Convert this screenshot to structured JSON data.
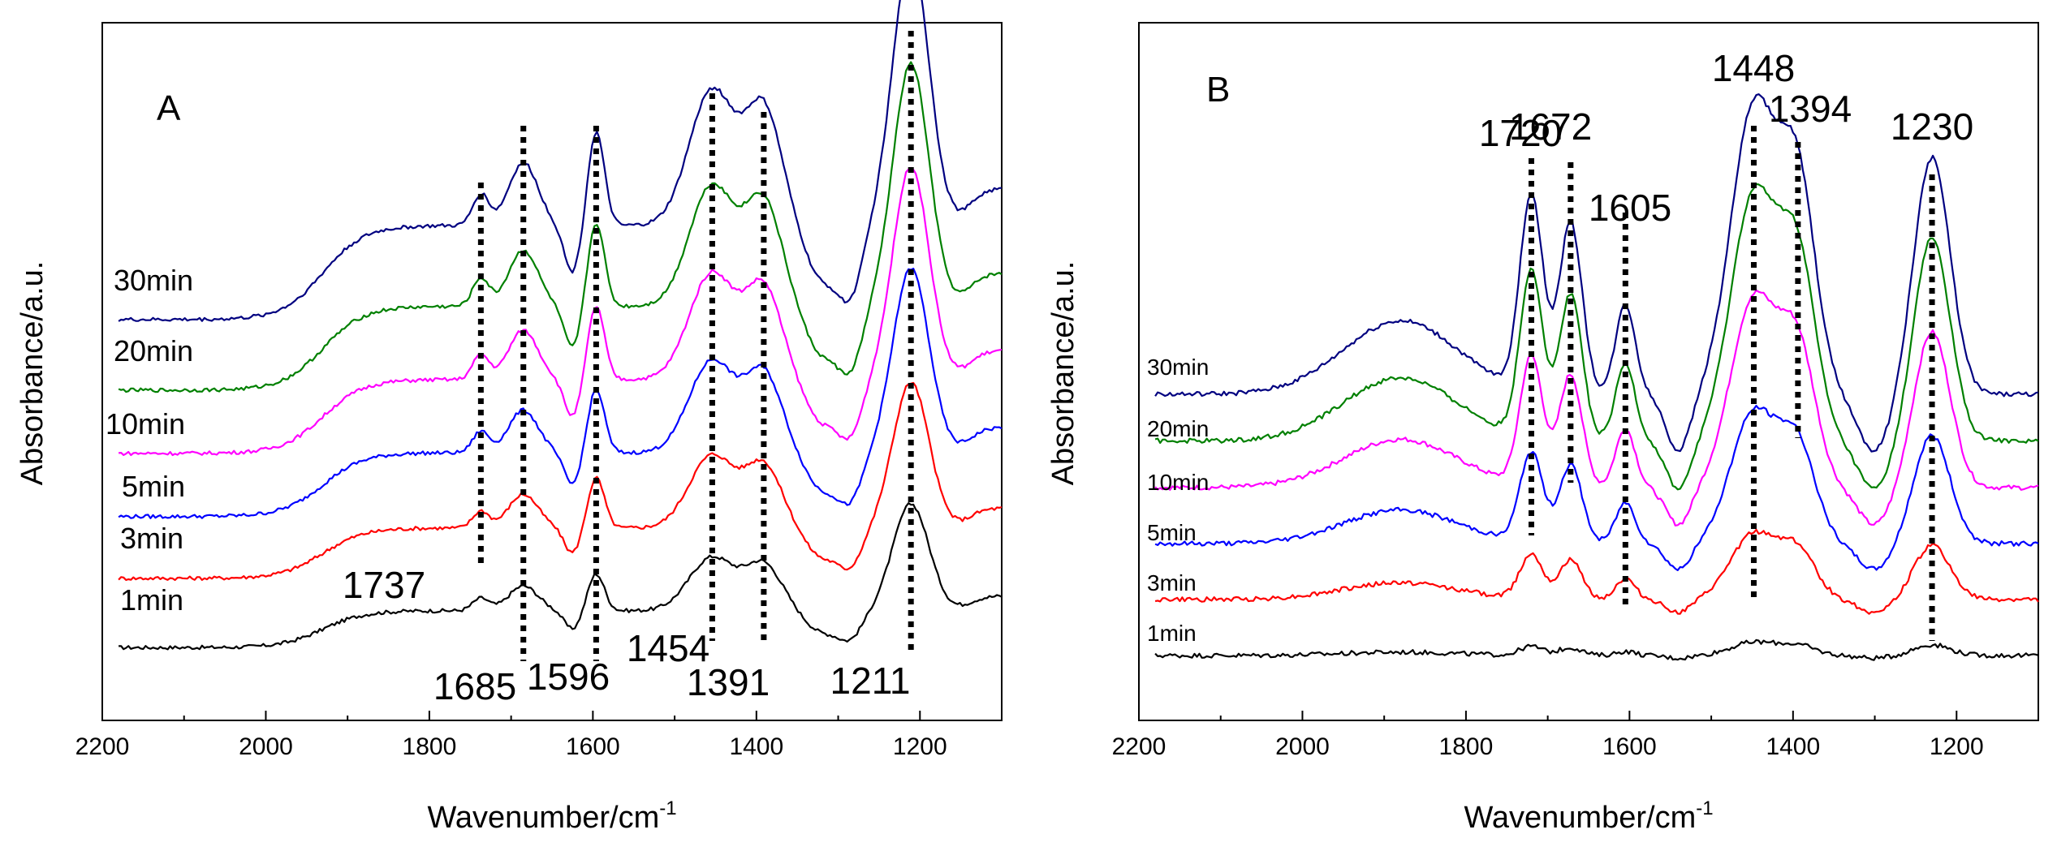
{
  "chart_data": [
    {
      "type": "line",
      "panel_label": "A",
      "xlabel": "Wavenumber/cm",
      "xlabel_sup": "-1",
      "ylabel": "Absorbance/a.u.",
      "xlim": [
        2200,
        1100
      ],
      "x_ticks": [
        2200,
        2000,
        1800,
        1600,
        1400,
        1200
      ],
      "y_ticks_labeled": false,
      "series": [
        {
          "name": "1min",
          "color": "#000000",
          "baseline": 0.0,
          "scale": 0.55
        },
        {
          "name": "3min",
          "color": "#ff0000",
          "baseline": 1.0,
          "scale": 0.75
        },
        {
          "name": "5min",
          "color": "#0000ff",
          "baseline": 1.9,
          "scale": 0.95
        },
        {
          "name": "10min",
          "color": "#ff00ff",
          "baseline": 2.8,
          "scale": 1.1
        },
        {
          "name": "20min",
          "color": "#008000",
          "baseline": 3.7,
          "scale": 1.25
        },
        {
          "name": "30min",
          "color": "#000080",
          "baseline": 4.7,
          "scale": 1.4
        }
      ],
      "peaks": [
        {
          "wavenumber": 1737,
          "label": "1737",
          "height": 1.0
        },
        {
          "wavenumber": 1685,
          "label": "1685",
          "height": 1.5
        },
        {
          "wavenumber": 1596,
          "label": "1596",
          "height": 1.7
        },
        {
          "wavenumber": 1454,
          "label": "1454",
          "height": 2.2
        },
        {
          "wavenumber": 1391,
          "label": "1391",
          "height": 2.0
        },
        {
          "wavenumber": 1211,
          "label": "1211",
          "height": 4.2
        }
      ]
    },
    {
      "type": "line",
      "panel_label": "B",
      "xlabel": "Wavenumber/cm",
      "xlabel_sup": "-1",
      "ylabel": "Absorbance/a.u.",
      "xlim": [
        2200,
        1100
      ],
      "x_ticks": [
        2200,
        2000,
        1800,
        1600,
        1400,
        1200
      ],
      "y_ticks_labeled": false,
      "series": [
        {
          "name": "1min",
          "color": "#000000",
          "baseline": 0.0,
          "scale": 0.08
        },
        {
          "name": "3min",
          "color": "#ff0000",
          "baseline": 0.6,
          "scale": 0.4
        },
        {
          "name": "5min",
          "color": "#0000ff",
          "baseline": 1.2,
          "scale": 0.8
        },
        {
          "name": "10min",
          "color": "#ff00ff",
          "baseline": 1.8,
          "scale": 1.15
        },
        {
          "name": "20min",
          "color": "#008000",
          "baseline": 2.3,
          "scale": 1.5
        },
        {
          "name": "30min",
          "color": "#000080",
          "baseline": 2.8,
          "scale": 1.75
        }
      ],
      "peaks": [
        {
          "wavenumber": 1720,
          "label": "1720",
          "height": 1.7
        },
        {
          "wavenumber": 1672,
          "label": "1672",
          "height": 1.6
        },
        {
          "wavenumber": 1605,
          "label": "1605",
          "height": 0.9
        },
        {
          "wavenumber": 1448,
          "label": "1448",
          "height": 2.3
        },
        {
          "wavenumber": 1394,
          "label": "1394",
          "height": 1.6
        },
        {
          "wavenumber": 1230,
          "label": "1230",
          "height": 1.7
        }
      ]
    }
  ]
}
